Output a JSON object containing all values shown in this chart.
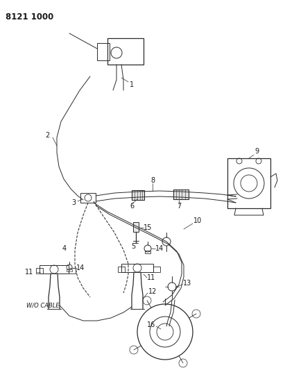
{
  "title_code": "8121 1000",
  "bg_color": "#ffffff",
  "line_color": "#2a2a2a",
  "label_color": "#1a1a1a",
  "wo_cable_text": "W/O CABLE",
  "figsize": [
    4.11,
    5.33
  ],
  "dpi": 100
}
